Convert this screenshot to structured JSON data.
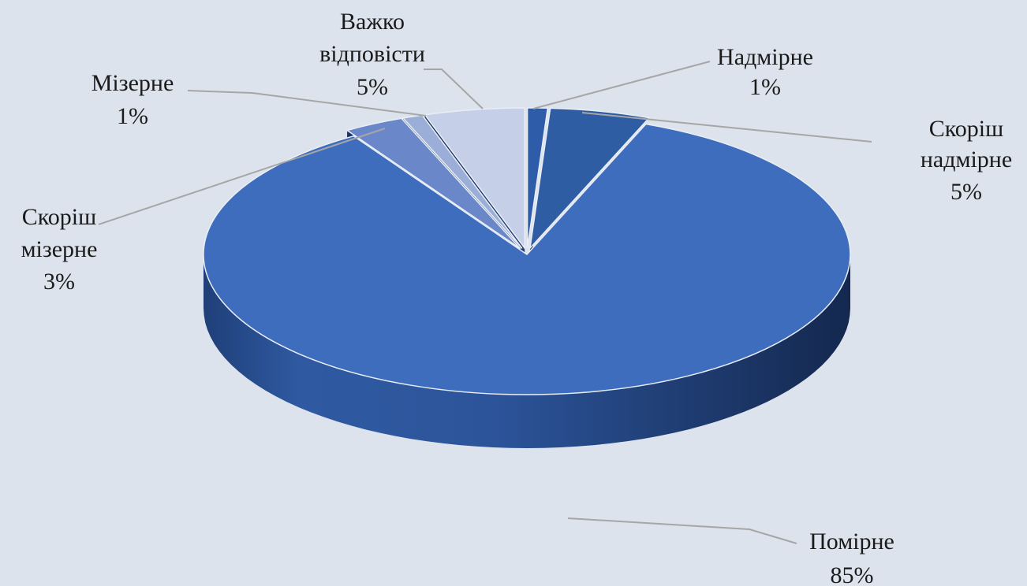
{
  "chart_data": {
    "type": "pie",
    "style": "3d-exploded",
    "title": "",
    "slices": [
      {
        "label": "Надмірне",
        "value": 1,
        "display": "1%",
        "color": "#2e5ca8"
      },
      {
        "label": "Скоріш надмірне",
        "value": 5,
        "display": "5%",
        "color": "#2f5da3"
      },
      {
        "label": "Помірне",
        "value": 85,
        "display": "85%",
        "color": "#3f6dbd"
      },
      {
        "label": "Скоріш мізерне",
        "value": 3,
        "display": "3%",
        "color": "#6a88c9"
      },
      {
        "label": "Мізерне",
        "value": 1,
        "display": "1%",
        "color": "#9aaed8"
      },
      {
        "label": "Важко відповісти",
        "value": 5,
        "display": "5%",
        "color": "#c5d0e8"
      }
    ]
  }
}
